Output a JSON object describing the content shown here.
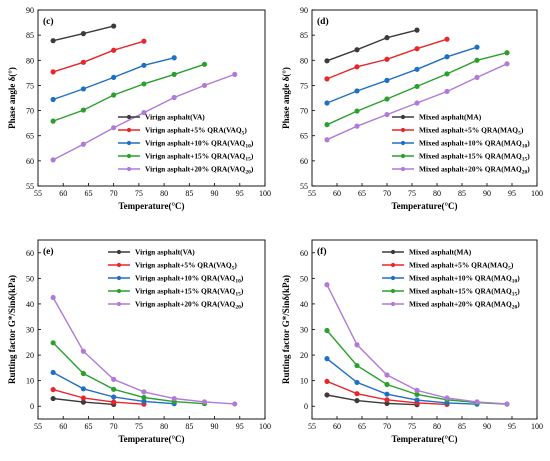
{
  "colors": {
    "s0": "#3b3b3b",
    "s1": "#e8262b",
    "s2": "#1f6fc5",
    "s3": "#2ca02c",
    "s4": "#b07ad8"
  },
  "chart_data": [
    {
      "type": "line",
      "panel_label": "(c)",
      "xlabel": "Temperature(°C)",
      "ylabel": "Phase angle δ(°)",
      "xlim": [
        55,
        100
      ],
      "ylim": [
        55,
        90
      ],
      "xticks": [
        "55",
        "60",
        "65",
        "70",
        "75",
        "80",
        "85",
        "90",
        "95",
        "100"
      ],
      "yticks": [
        "55",
        "60",
        "65",
        "70",
        "75",
        "80",
        "85",
        "90"
      ],
      "legend_position": "bottom-right",
      "series": [
        {
          "name": "Virign asphalt(VA)",
          "legend_main": "Virign asphalt(VA)",
          "legend_sub": "",
          "legend_tail": "",
          "x": [
            58,
            64,
            70
          ],
          "y": [
            83.9,
            85.3,
            86.8
          ]
        },
        {
          "name": "Virign asphalt+5% QRA(VAQ5)",
          "legend_main": "Virign asphalt+5% QRA(VAQ",
          "legend_sub": "5",
          "legend_tail": ")",
          "x": [
            58,
            64,
            70,
            76
          ],
          "y": [
            77.7,
            79.6,
            82.0,
            83.8
          ]
        },
        {
          "name": "Virign asphalt+10% QRA(VAQ10)",
          "legend_main": "Virign asphalt+10% QRA(VAQ",
          "legend_sub": "10",
          "legend_tail": ")",
          "x": [
            58,
            64,
            70,
            76,
            82
          ],
          "y": [
            72.2,
            74.3,
            76.6,
            79.0,
            80.5
          ]
        },
        {
          "name": "Virign asphalt+15% QRA(VAQ15)",
          "legend_main": "Virign asphalt+15% QRA(VAQ",
          "legend_sub": "15",
          "legend_tail": ")",
          "x": [
            58,
            64,
            70,
            76,
            82,
            88
          ],
          "y": [
            67.9,
            70.1,
            73.1,
            75.3,
            77.2,
            79.2
          ]
        },
        {
          "name": "Virign asphalt+20% QRA(VAQ20)",
          "legend_main": "Virign asphalt+20% QRA(VAQ",
          "legend_sub": "20",
          "legend_tail": ")",
          "x": [
            58,
            64,
            70,
            76,
            82,
            88,
            94
          ],
          "y": [
            60.2,
            63.3,
            66.6,
            69.6,
            72.6,
            75.0,
            77.2
          ]
        }
      ]
    },
    {
      "type": "line",
      "panel_label": "(d)",
      "xlabel": "Temperature(°C)",
      "ylabel": "Phase angle δ(°)",
      "xlim": [
        55,
        100
      ],
      "ylim": [
        55,
        90
      ],
      "xticks": [
        "55",
        "60",
        "65",
        "70",
        "75",
        "80",
        "85",
        "90",
        "95",
        "100"
      ],
      "yticks": [
        "55",
        "60",
        "65",
        "70",
        "75",
        "80",
        "85",
        "90"
      ],
      "legend_position": "bottom-right",
      "series": [
        {
          "name": "Mixed asphalt(MA)",
          "legend_main": "Mixed asphalt(MA)",
          "legend_sub": "",
          "legend_tail": "",
          "x": [
            58,
            64,
            70,
            76
          ],
          "y": [
            79.9,
            82.1,
            84.5,
            86.0
          ]
        },
        {
          "name": "Mixed asphalt+5% QRA(MAQ5)",
          "legend_main": "Mixed asphalt+5% QRA(MAQ",
          "legend_sub": "5",
          "legend_tail": ")",
          "x": [
            58,
            64,
            70,
            76,
            82
          ],
          "y": [
            76.3,
            78.7,
            80.2,
            82.3,
            84.2
          ]
        },
        {
          "name": "Mixed asphalt+10% QRA(MAQ10)",
          "legend_main": "Mixed asphalt+10% QRA(MAQ",
          "legend_sub": "10",
          "legend_tail": ")",
          "x": [
            58,
            64,
            70,
            76,
            82,
            88
          ],
          "y": [
            71.5,
            73.9,
            76.0,
            78.2,
            80.7,
            82.6
          ]
        },
        {
          "name": "Mixed asphalt+15% QRA(MAQ15)",
          "legend_main": "Mixed asphalt+15% QRA(MAQ",
          "legend_sub": "15",
          "legend_tail": ")",
          "x": [
            58,
            64,
            70,
            76,
            82,
            88,
            94
          ],
          "y": [
            67.2,
            69.9,
            72.3,
            74.8,
            77.3,
            80.0,
            81.5
          ]
        },
        {
          "name": "Mixed asphalt+20% QRA(MAQ20)",
          "legend_main": "Mixed asphalt+20% QRA(MAQ",
          "legend_sub": "20",
          "legend_tail": ")",
          "x": [
            58,
            64,
            70,
            76,
            82,
            88,
            94
          ],
          "y": [
            64.2,
            66.9,
            69.2,
            71.5,
            73.8,
            76.6,
            79.3
          ]
        }
      ]
    },
    {
      "type": "line",
      "panel_label": "(e)",
      "xlabel": "Temperature(°C)",
      "ylabel": "Rutting factor G*/Sinδ(kPa)",
      "xlim": [
        55,
        100
      ],
      "ylim": [
        -5,
        65
      ],
      "xticks": [
        "55",
        "60",
        "65",
        "70",
        "75",
        "80",
        "85",
        "90",
        "95",
        "100"
      ],
      "yticks": [
        "0",
        "10",
        "20",
        "30",
        "40",
        "50",
        "60"
      ],
      "legend_position": "top-right",
      "series": [
        {
          "name": "Virign asphalt(VA)",
          "legend_main": "Virign asphalt(VA)",
          "legend_sub": "",
          "legend_tail": "",
          "x": [
            58,
            64,
            70
          ],
          "y": [
            3.0,
            1.6,
            0.7
          ]
        },
        {
          "name": "Virign asphalt+5% QRA(VAQ5)",
          "legend_main": "Virign asphalt+5% QRA(VAQ",
          "legend_sub": "5",
          "legend_tail": ")",
          "x": [
            58,
            64,
            70,
            76
          ],
          "y": [
            6.5,
            3.2,
            1.6,
            0.8
          ]
        },
        {
          "name": "Virign asphalt+10% QRA(VAQ10)",
          "legend_main": "Virign asphalt+10% QRA(VAQ",
          "legend_sub": "10",
          "legend_tail": ")",
          "x": [
            58,
            64,
            70,
            76,
            82
          ],
          "y": [
            13.2,
            6.8,
            3.6,
            1.9,
            1.0
          ]
        },
        {
          "name": "Virign asphalt+15% QRA(VAQ15)",
          "legend_main": "Virign asphalt+15% QRA(VAQ",
          "legend_sub": "15",
          "legend_tail": ")",
          "x": [
            58,
            64,
            70,
            76,
            82,
            88
          ],
          "y": [
            24.8,
            12.8,
            6.6,
            3.4,
            1.8,
            1.0
          ]
        },
        {
          "name": "Virign asphalt+20% QRA(VAQ20)",
          "legend_main": "Virign asphalt+20% QRA(VAQ",
          "legend_sub": "20",
          "legend_tail": ")",
          "x": [
            58,
            64,
            70,
            76,
            82,
            88,
            94
          ],
          "y": [
            42.5,
            21.5,
            10.5,
            5.6,
            3.0,
            1.7,
            0.9
          ]
        }
      ]
    },
    {
      "type": "line",
      "panel_label": "(f)",
      "xlabel": "Temperature(°C)",
      "ylabel": "Rutting factor G*/Sinδ(kPa)",
      "xlim": [
        55,
        100
      ],
      "ylim": [
        -5,
        65
      ],
      "xticks": [
        "55",
        "60",
        "65",
        "70",
        "75",
        "80",
        "85",
        "90",
        "95",
        "100"
      ],
      "yticks": [
        "0",
        "10",
        "20",
        "30",
        "40",
        "50",
        "60"
      ],
      "legend_position": "top-right",
      "series": [
        {
          "name": "Mixed asphalt(MA)",
          "legend_main": "Mixed asphalt(MA)",
          "legend_sub": "",
          "legend_tail": "",
          "x": [
            58,
            64,
            70,
            76
          ],
          "y": [
            4.4,
            2.2,
            1.1,
            0.6
          ]
        },
        {
          "name": "Mixed asphalt+5% QRA(MAQ5)",
          "legend_main": "Mixed asphalt+5% QRA(MAQ",
          "legend_sub": "5",
          "legend_tail": ")",
          "x": [
            58,
            64,
            70,
            76,
            82
          ],
          "y": [
            9.7,
            4.9,
            2.5,
            1.3,
            0.7
          ]
        },
        {
          "name": "Mixed asphalt+10% QRA(MAQ10)",
          "legend_main": "Mixed asphalt+10% QRA(MAQ",
          "legend_sub": "10",
          "legend_tail": ")",
          "x": [
            58,
            64,
            70,
            76,
            82,
            88
          ],
          "y": [
            18.6,
            9.3,
            4.7,
            2.4,
            1.3,
            0.8
          ]
        },
        {
          "name": "Mixed asphalt+15% QRA(MAQ15)",
          "legend_main": "Mixed asphalt+15% QRA(MAQ",
          "legend_sub": "15",
          "legend_tail": ")",
          "x": [
            58,
            64,
            70,
            76,
            82,
            88,
            94
          ],
          "y": [
            29.6,
            15.9,
            8.5,
            4.6,
            2.5,
            1.4,
            0.8
          ]
        },
        {
          "name": "Mixed asphalt+20% QRA(MAQ20)",
          "legend_main": "Mixed asphalt+20% QRA(MAQ",
          "legend_sub": "20",
          "legend_tail": ")",
          "x": [
            58,
            64,
            70,
            76,
            82,
            88,
            94
          ],
          "y": [
            47.5,
            24.0,
            12.2,
            6.2,
            3.2,
            1.7,
            0.9
          ]
        }
      ]
    }
  ]
}
